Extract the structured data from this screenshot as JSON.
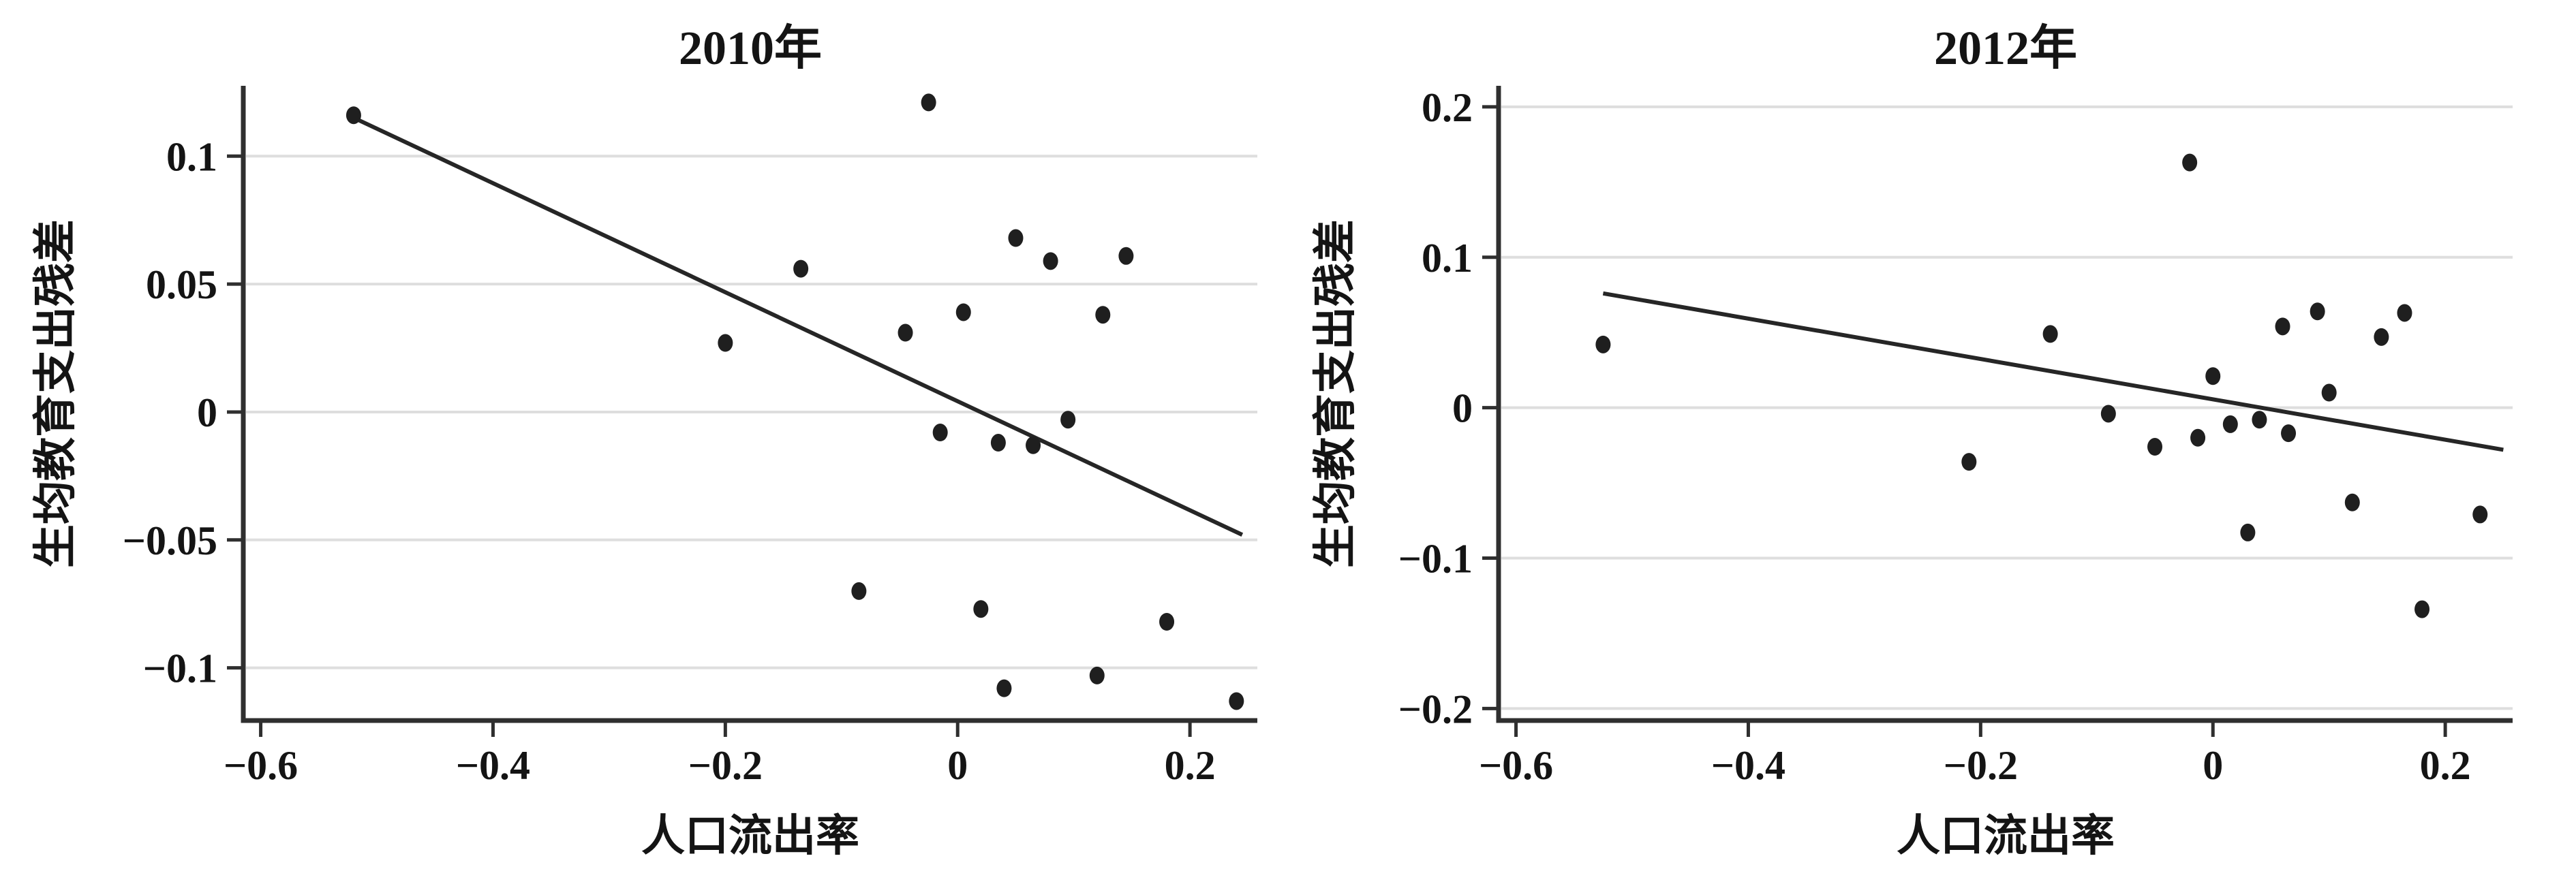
{
  "figure": {
    "background": "#ffffff"
  },
  "colors": {
    "text": "#141414",
    "axis": "#2f2f2f",
    "gridline": "#dedede",
    "point": "#1f1f1f",
    "trend_line": "#262626"
  },
  "chart_data": [
    {
      "type": "scatter",
      "title": "2010年",
      "xlabel": "人口流出率",
      "ylabel": "生均教育支出残差",
      "legend": "none",
      "grid": "horizontal-only",
      "xlim": [
        -0.615,
        0.258
      ],
      "ylim": [
        -0.1206,
        0.1275
      ],
      "xtick_values": [
        -0.6,
        -0.4,
        -0.2,
        0,
        0.2
      ],
      "xtick_labels": [
        "−0.6",
        "−0.4",
        "−0.2",
        "0",
        "0.2"
      ],
      "ytick_values": [
        0.1,
        0.05,
        0,
        -0.05,
        -0.1
      ],
      "ytick_labels": [
        "0.1",
        "0.05",
        "0",
        "−0.05",
        "−0.1"
      ],
      "points": [
        [
          -0.52,
          0.116
        ],
        [
          -0.025,
          0.121
        ],
        [
          -0.2,
          0.027
        ],
        [
          -0.135,
          0.056
        ],
        [
          -0.045,
          0.031
        ],
        [
          0.005,
          0.039
        ],
        [
          0.05,
          0.068
        ],
        [
          0.08,
          0.059
        ],
        [
          0.125,
          0.038
        ],
        [
          0.145,
          0.061
        ],
        [
          -0.015,
          -0.008
        ],
        [
          0.035,
          -0.012
        ],
        [
          0.065,
          -0.013
        ],
        [
          0.095,
          -0.003
        ],
        [
          -0.085,
          -0.07
        ],
        [
          0.02,
          -0.077
        ],
        [
          0.04,
          -0.108
        ],
        [
          0.12,
          -0.103
        ],
        [
          0.18,
          -0.082
        ],
        [
          0.24,
          -0.113
        ]
      ],
      "trend_line": {
        "x1": -0.52,
        "y1": 0.115,
        "x2": 0.245,
        "y2": -0.048
      }
    },
    {
      "type": "scatter",
      "title": "2012年",
      "xlabel": "人口流出率",
      "ylabel": "生均教育支出残差",
      "legend": "none",
      "grid": "horizontal-only",
      "xlim": [
        -0.615,
        0.258
      ],
      "ylim": [
        -0.208,
        0.214
      ],
      "xtick_values": [
        -0.6,
        -0.4,
        -0.2,
        0,
        0.2
      ],
      "xtick_labels": [
        "−0.6",
        "−0.4",
        "−0.2",
        "0",
        "0.2"
      ],
      "ytick_values": [
        0.2,
        0.1,
        0,
        -0.1,
        -0.2
      ],
      "ytick_labels": [
        "0.2",
        "0.1",
        "0",
        "−0.1",
        "−0.2"
      ],
      "points": [
        [
          -0.525,
          0.042
        ],
        [
          -0.21,
          -0.036
        ],
        [
          -0.14,
          0.049
        ],
        [
          -0.09,
          -0.004
        ],
        [
          -0.05,
          -0.026
        ],
        [
          -0.02,
          0.163
        ],
        [
          -0.013,
          -0.02
        ],
        [
          0.0,
          0.021
        ],
        [
          0.015,
          -0.011
        ],
        [
          0.04,
          -0.008
        ],
        [
          0.065,
          -0.017
        ],
        [
          0.06,
          0.054
        ],
        [
          0.09,
          0.064
        ],
        [
          0.1,
          0.01
        ],
        [
          0.145,
          0.047
        ],
        [
          0.165,
          0.063
        ],
        [
          0.12,
          -0.063
        ],
        [
          0.03,
          -0.083
        ],
        [
          0.18,
          -0.134
        ],
        [
          0.23,
          -0.071
        ]
      ],
      "trend_line": {
        "x1": -0.525,
        "y1": 0.076,
        "x2": 0.25,
        "y2": -0.028
      }
    }
  ]
}
